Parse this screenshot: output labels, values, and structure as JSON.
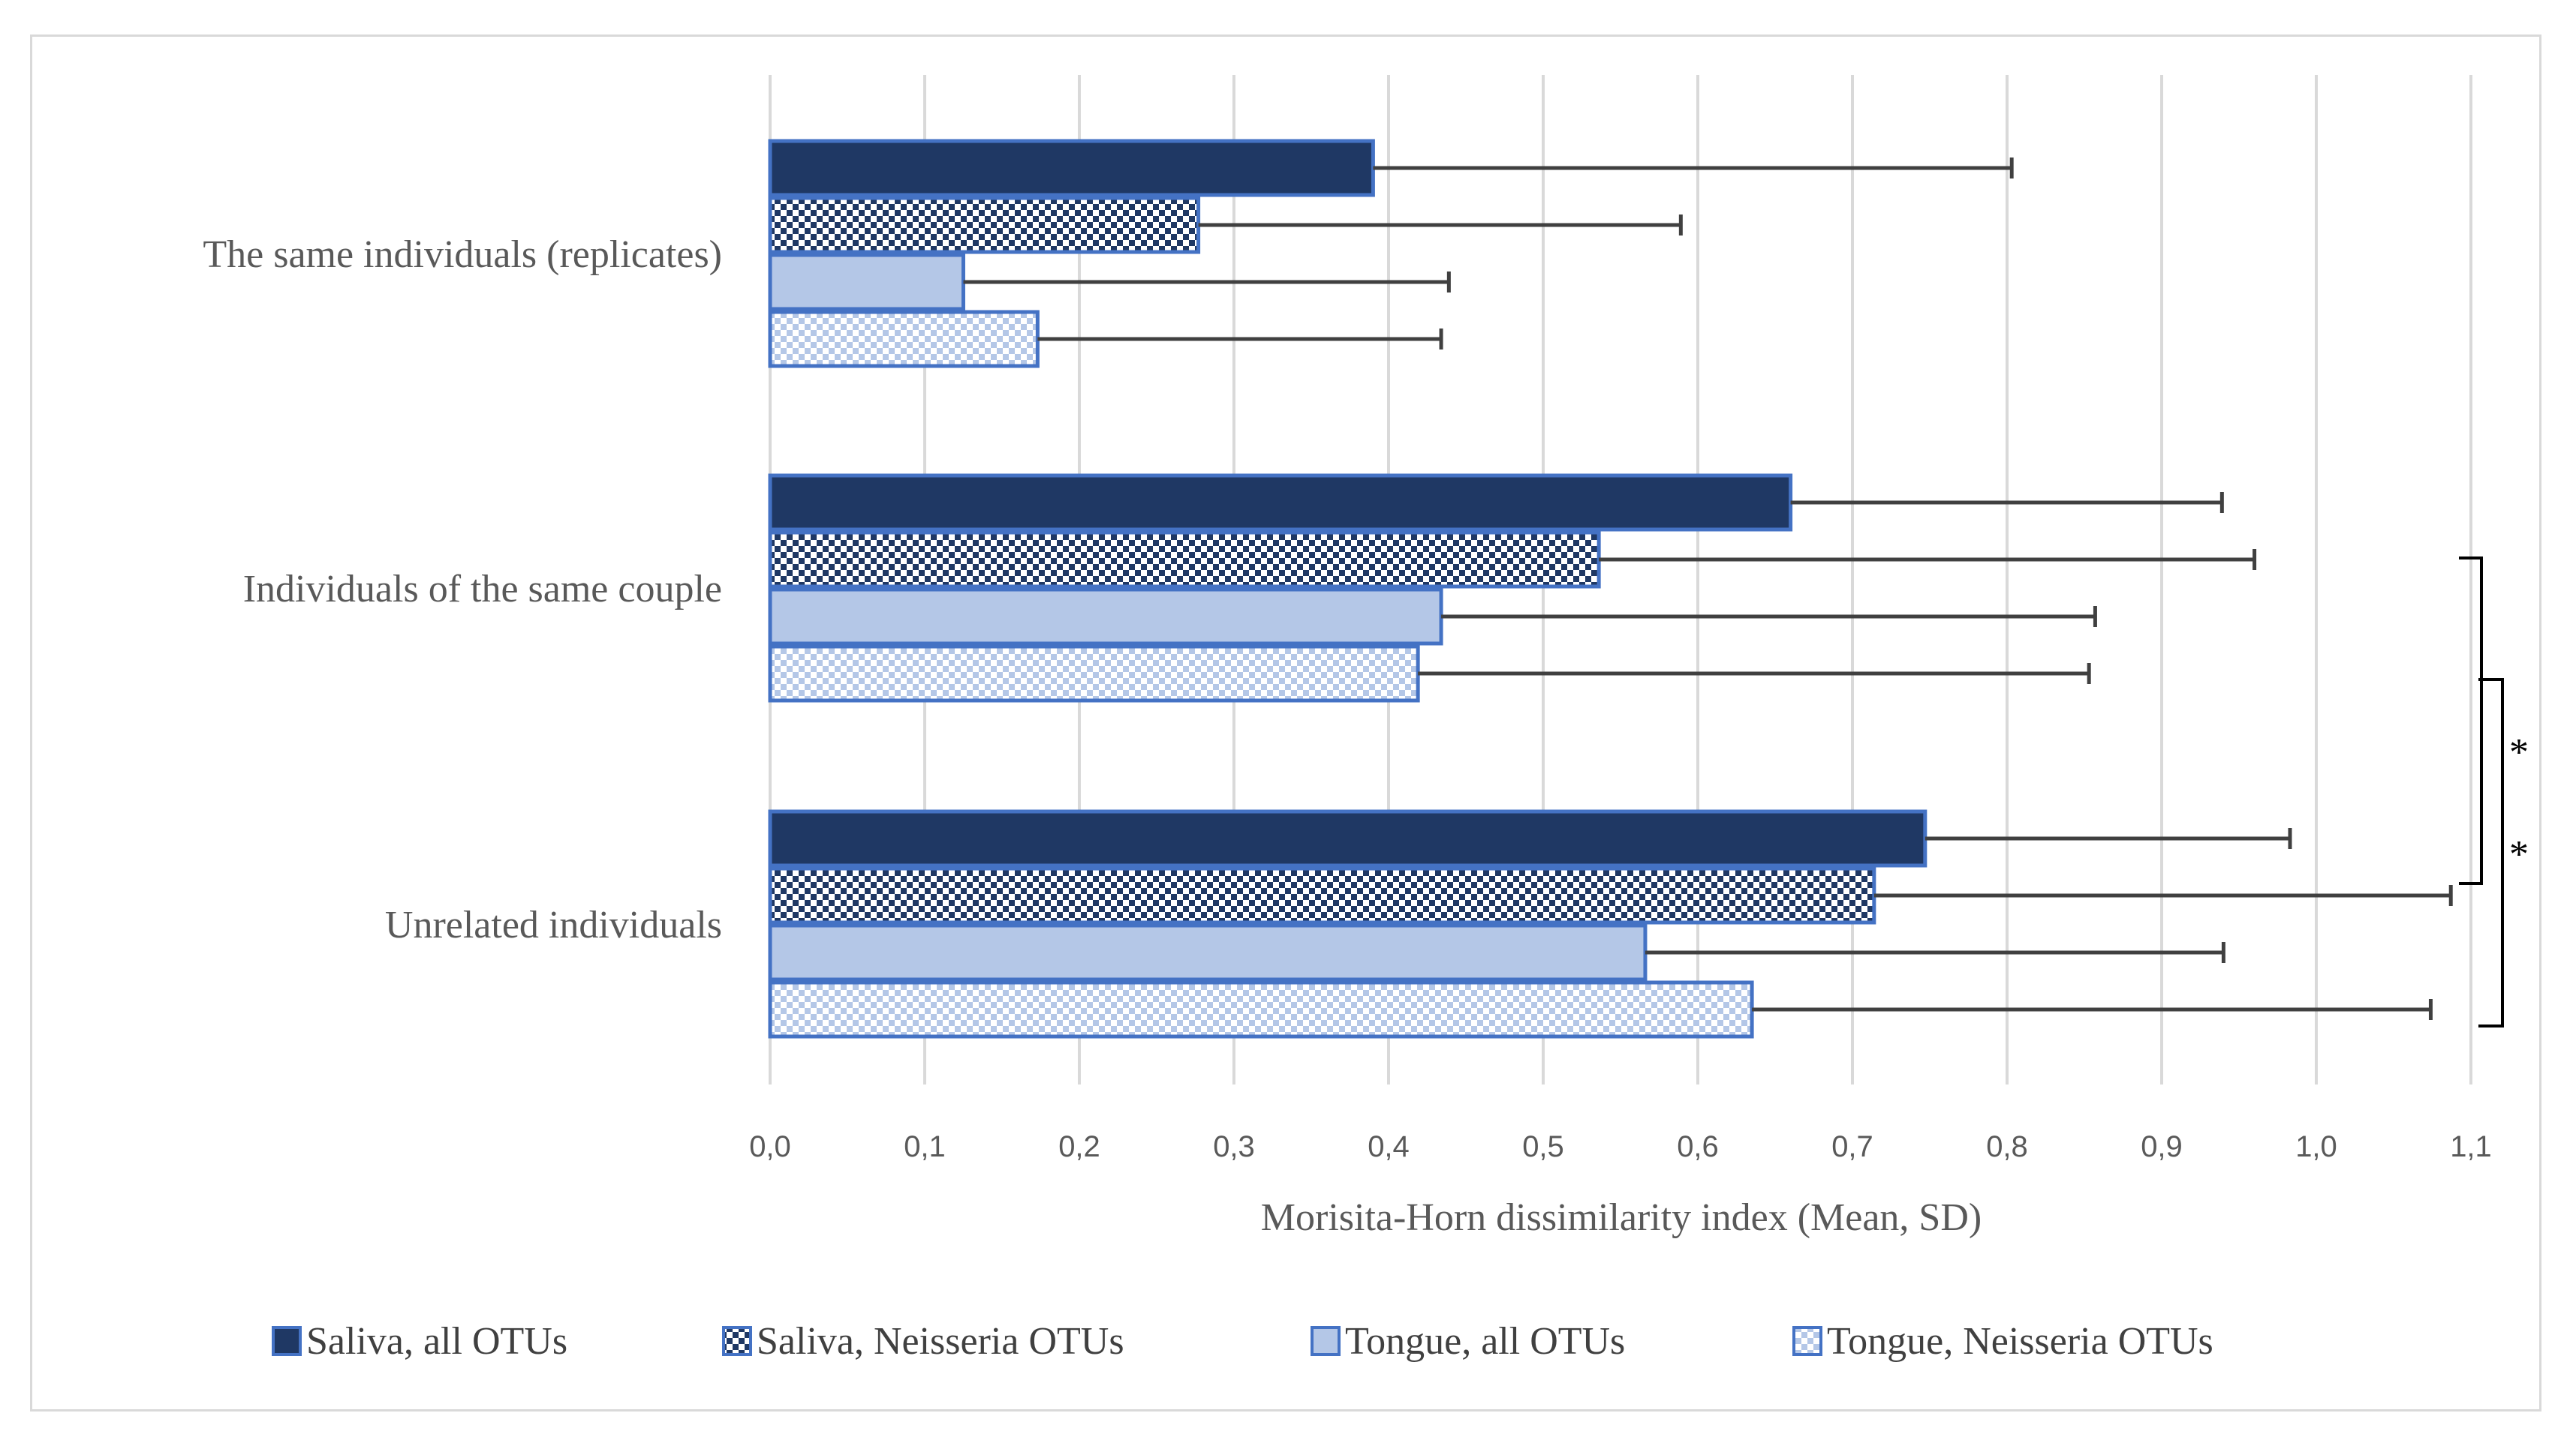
{
  "chart_data": {
    "type": "bar",
    "orientation": "horizontal",
    "title": "",
    "xlabel": "Morisita-Horn dissimilarity index (Mean, SD)",
    "ylabel": "",
    "xlim": [
      0.0,
      1.1
    ],
    "xticks": [
      "0,0",
      "0,1",
      "0,2",
      "0,3",
      "0,4",
      "0,5",
      "0,6",
      "0,7",
      "0,8",
      "0,9",
      "1,0",
      "1,1"
    ],
    "grid": "vertical",
    "legend_position": "bottom",
    "categories": [
      "The same individuals (replicates)",
      "Individuals of the same couple",
      "Unrelated individuals"
    ],
    "series": [
      {
        "name": "Saliva, all OTUs",
        "pattern": "solid-dark",
        "values": [
          0.39,
          0.66,
          0.747
        ],
        "sd": [
          0.413,
          0.279,
          0.236
        ]
      },
      {
        "name": "Saliva, Neisseria OTUs",
        "pattern": "checker-dark",
        "values": [
          0.277,
          0.536,
          0.714
        ],
        "sd": [
          0.312,
          0.424,
          0.373
        ]
      },
      {
        "name": "Tongue, all OTUs",
        "pattern": "solid-light",
        "values": [
          0.125,
          0.434,
          0.566
        ],
        "sd": [
          0.314,
          0.423,
          0.374
        ]
      },
      {
        "name": "Tongue, Neisseria OTUs",
        "pattern": "checker-light",
        "values": [
          0.173,
          0.419,
          0.635
        ],
        "sd": [
          0.261,
          0.434,
          0.439
        ]
      }
    ],
    "significance": [
      {
        "label": "*",
        "between": [
          "Individuals of the same couple",
          "Unrelated individuals"
        ],
        "series": "Saliva, Neisseria OTUs"
      },
      {
        "label": "*",
        "between": [
          "Individuals of the same couple",
          "Unrelated individuals"
        ],
        "series": "Tongue, Neisseria OTUs"
      }
    ],
    "colors": {
      "dark": "#1f3864",
      "light": "#b4c7e7",
      "bar_edge": "#4472c4",
      "error_bar": "#404040",
      "grid": "#d9d9d9",
      "axis_text": "#595959"
    }
  }
}
